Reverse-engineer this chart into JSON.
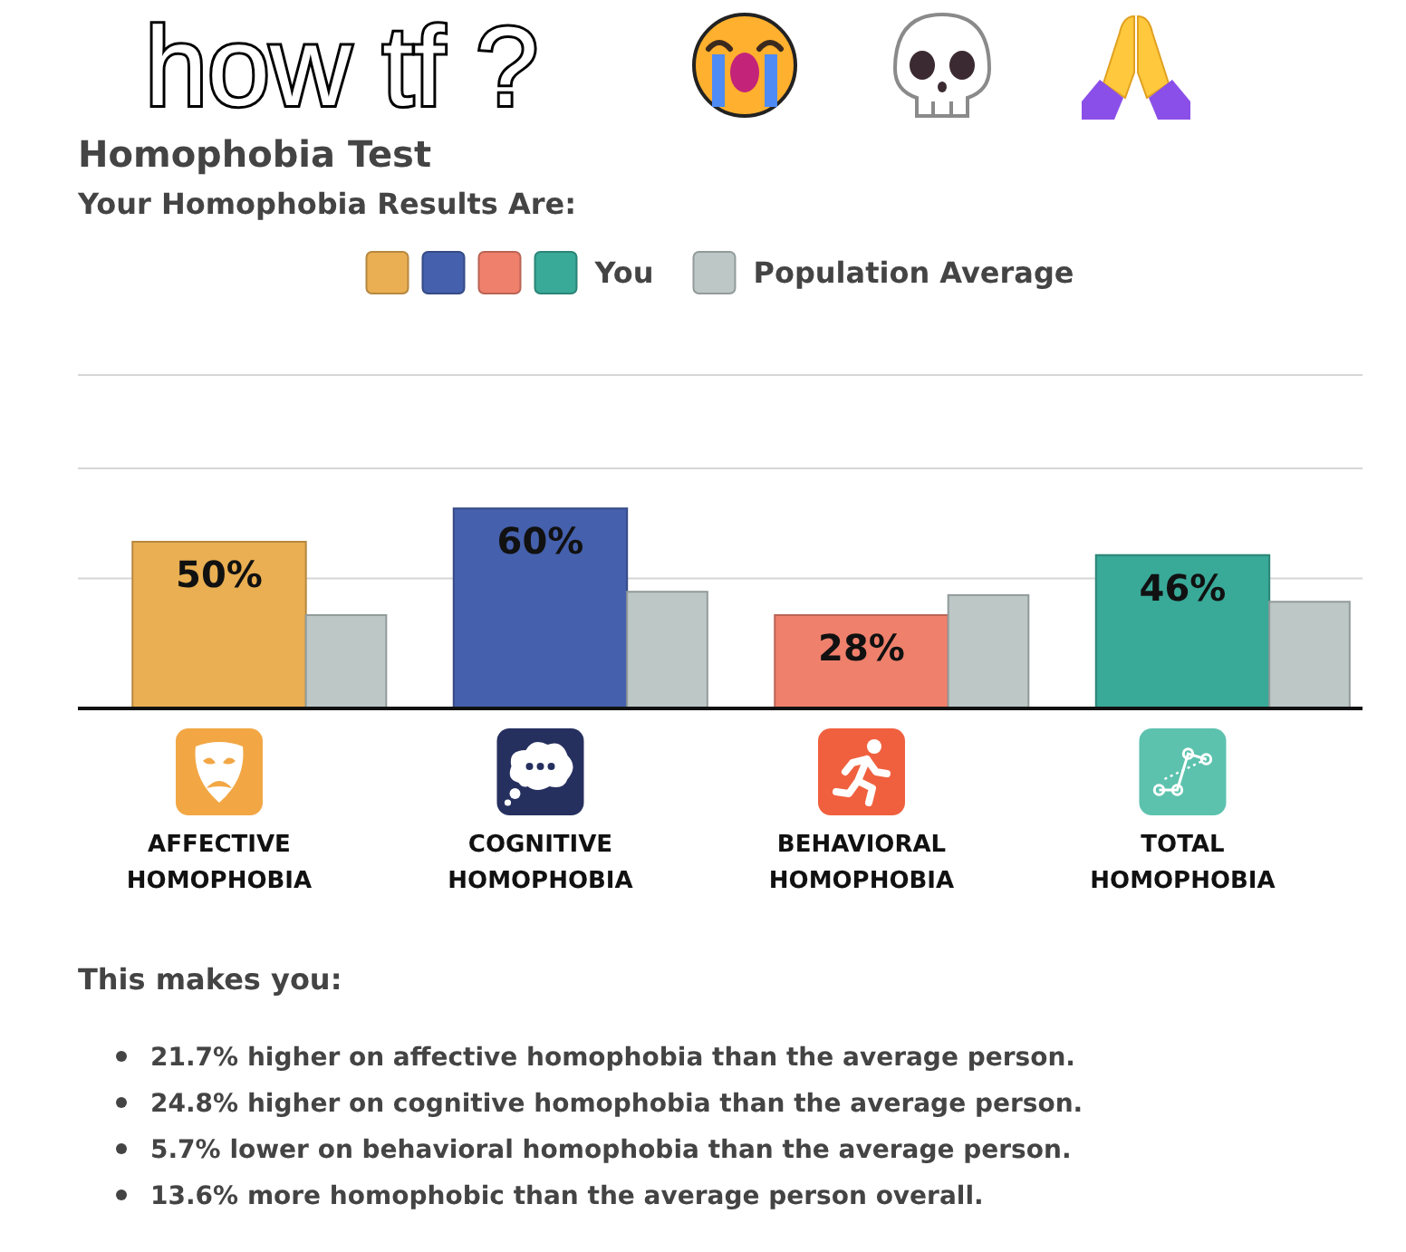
{
  "chart_data": {
    "type": "bar",
    "title": "Homophobia Test",
    "subtitle": "Your Homophobia Results Are:",
    "categories": [
      "AFFECTIVE HOMOPHOBIA",
      "COGNITIVE HOMOPHOBIA",
      "BEHAVIORAL HOMOPHOBIA",
      "TOTAL HOMOPHOBIA"
    ],
    "series": [
      {
        "name": "You",
        "colors": [
          "#e9af52",
          "#4560ac",
          "#ef806c",
          "#39a998"
        ],
        "values": [
          50,
          60,
          28,
          46
        ],
        "value_labels": [
          "50%",
          "60%",
          "28%",
          "46%"
        ]
      },
      {
        "name": "Population Average",
        "color": "#bcc7c6",
        "values": [
          28,
          35,
          34,
          32
        ]
      }
    ],
    "ylim": [
      0,
      100
    ],
    "yticks": [
      {
        "value": 39,
        "label": null
      },
      {
        "value": 72,
        "label": null
      },
      {
        "value": 100,
        "label": null
      }
    ],
    "grid": "y",
    "legend": "top",
    "tick_labels": "x",
    "annotations": [
      "how tf ?",
      "This makes you:",
      "21.7% higher on affective homophobia than the average person.",
      "24.8% higher on cognitive homophobia than the average person.",
      "5.7% lower on behavioral homophobia than the average person.",
      "13.6% more homophobic than the average person overall."
    ]
  }
}
